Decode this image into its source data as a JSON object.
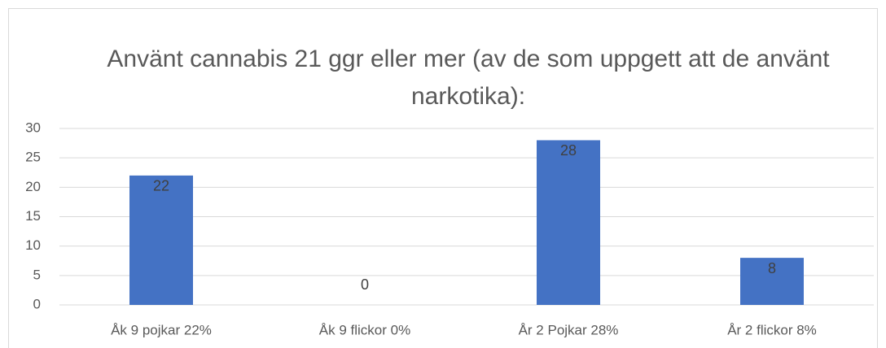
{
  "chart_data": {
    "type": "bar",
    "title": "Använt cannabis 21 ggr eller mer (av de som uppgett att de använt narkotika):",
    "categories": [
      "Åk 9 pojkar 22%",
      "Åk 9 flickor 0%",
      "År 2 Pojkar 28%",
      "År 2 flickor 8%"
    ],
    "values": [
      22,
      0,
      28,
      8
    ],
    "color": "#4472c4",
    "ylim": [
      0,
      30
    ],
    "yticks": [
      0,
      5,
      10,
      15,
      20,
      25,
      30
    ],
    "grid": true
  }
}
